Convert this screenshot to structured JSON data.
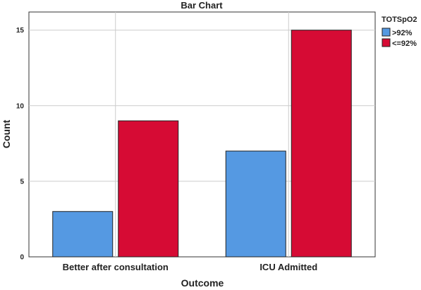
{
  "chart_data": {
    "type": "bar",
    "title": "Bar Chart",
    "xlabel": "Outcome",
    "ylabel": "Count",
    "categories": [
      "Better after consultation",
      "ICU Admitted"
    ],
    "series": [
      {
        "name": ">92%",
        "values": [
          3,
          7
        ],
        "color": "#5599E2"
      },
      {
        "name": "<=92%",
        "values": [
          9,
          15
        ],
        "color": "#D60B34"
      }
    ],
    "ylim": [
      0,
      16.2
    ],
    "yticks": [
      0,
      5,
      10,
      15
    ],
    "grid": true,
    "legend": {
      "title": "TOTSpO2",
      "placement": "top-right-outside"
    }
  }
}
